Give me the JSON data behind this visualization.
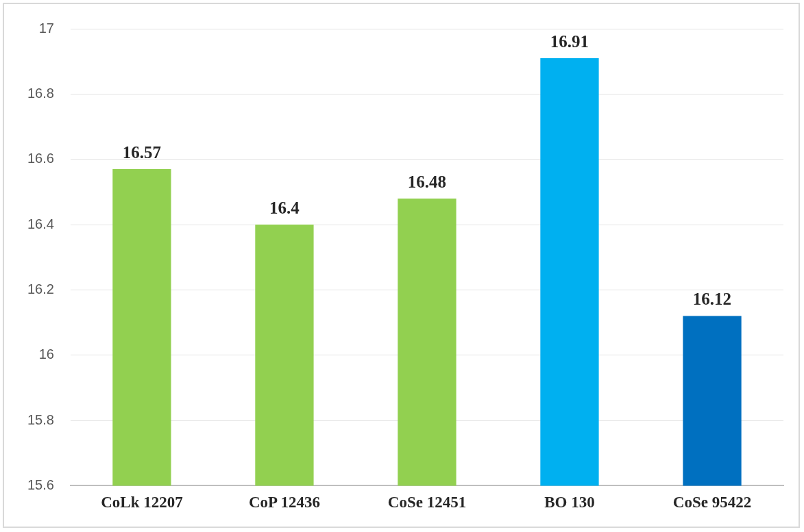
{
  "chart_data": {
    "type": "bar",
    "categories": [
      "CoLk 12207",
      "CoP 12436",
      "CoSe 12451",
      "BO 130",
      "CoSe 95422"
    ],
    "values": [
      16.57,
      16.4,
      16.48,
      16.91,
      16.12
    ],
    "colors": [
      "#92d050",
      "#92d050",
      "#92d050",
      "#00b0f0",
      "#0070c0"
    ],
    "ylim": [
      15.6,
      17
    ],
    "yticks": [
      15.6,
      15.8,
      16,
      16.2,
      16.4,
      16.6,
      16.8,
      17
    ],
    "grid": "y",
    "data_labels": true,
    "legend": false
  }
}
